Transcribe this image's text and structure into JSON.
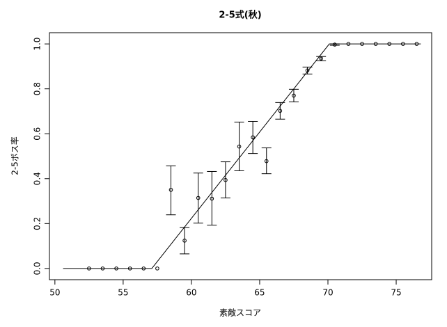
{
  "chart_data": {
    "type": "scatter",
    "title": "2-5式(秋)",
    "x_label": "素敵スコア",
    "y_label": "2-5ボス率",
    "x": [
      52.5,
      53.5,
      54.5,
      55.5,
      56.5,
      57.5,
      58.5,
      59.5,
      60.5,
      61.5,
      62.5,
      63.5,
      64.5,
      65.5,
      66.5,
      67.5,
      68.5,
      69.5,
      70.5,
      71.5,
      72.5,
      73.5,
      74.5,
      75.5,
      76.5
    ],
    "values": [
      0,
      0,
      0,
      0,
      0,
      0,
      0.35,
      0.124,
      0.314,
      0.311,
      0.394,
      0.543,
      0.584,
      0.478,
      0.702,
      0.77,
      0.882,
      0.935,
      0.997,
      1,
      1,
      1,
      1,
      1,
      1
    ],
    "lower": [
      null,
      null,
      null,
      null,
      null,
      null,
      0.239,
      0.065,
      0.202,
      0.193,
      0.314,
      0.435,
      0.512,
      0.422,
      0.665,
      0.742,
      0.866,
      0.925,
      0.994,
      null,
      null,
      null,
      null,
      null,
      null
    ],
    "upper": [
      null,
      null,
      null,
      null,
      null,
      null,
      0.457,
      0.183,
      0.425,
      0.432,
      0.475,
      0.652,
      0.655,
      0.537,
      0.739,
      0.798,
      0.897,
      0.944,
      1.0,
      null,
      null,
      null,
      null,
      null,
      null
    ],
    "fit_line": {
      "x": [
        50.6,
        57.1,
        70.1,
        76.8
      ],
      "values": [
        0,
        0,
        1,
        1
      ]
    },
    "color": "#000000",
    "xlim": [
      49.6,
      77.6
    ],
    "ylim": [
      -0.05,
      1.05
    ],
    "xticks": [
      50,
      55,
      60,
      65,
      70,
      75
    ],
    "yticks": [
      {
        "value": 0,
        "label": "0.0"
      },
      {
        "value": 0.2,
        "label": "0.2"
      },
      {
        "value": 0.4,
        "label": "0.4"
      },
      {
        "value": 0.6,
        "label": "0.6"
      },
      {
        "value": 0.8,
        "label": "0.8"
      },
      {
        "value": 1,
        "label": "1.0"
      }
    ]
  }
}
